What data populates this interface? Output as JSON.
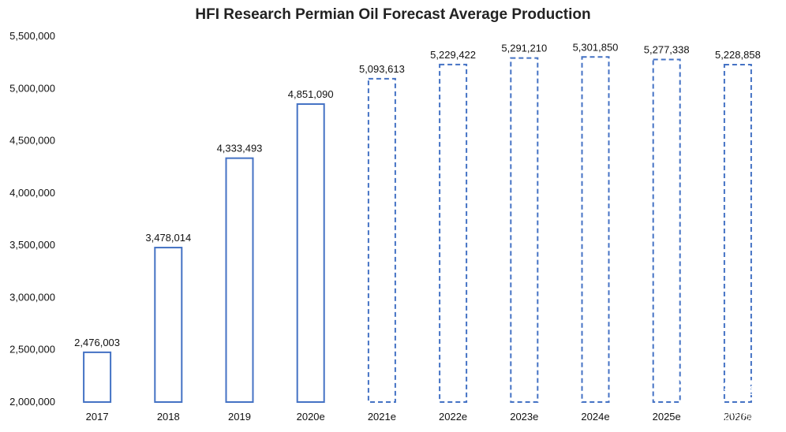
{
  "chart_data": {
    "type": "bar",
    "title": "HFI Research Permian Oil Forecast Average Production",
    "xlabel": "",
    "ylabel": "",
    "categories": [
      "2017",
      "2018",
      "2019",
      "2020e",
      "2021e",
      "2022e",
      "2023e",
      "2024e",
      "2025e",
      "2026e"
    ],
    "values": [
      2476003,
      3478014,
      4333493,
      4851090,
      5093613,
      5229422,
      5291210,
      5301850,
      5277338,
      5228858
    ],
    "value_labels": [
      "2,476,003",
      "3,478,014",
      "4,333,493",
      "4,851,090",
      "5,093,613",
      "5,229,422",
      "5,291,210",
      "5,301,850",
      "5,277,338",
      "5,228,858"
    ],
    "bar_styles": [
      "solid",
      "solid",
      "solid",
      "solid",
      "dashed",
      "dashed",
      "dashed",
      "dashed",
      "dashed",
      "dashed"
    ],
    "ylim": [
      2000000,
      5500000
    ],
    "yticks": [
      2000000,
      2500000,
      3000000,
      3500000,
      4000000,
      4500000,
      5000000,
      5500000
    ],
    "ytick_labels": [
      "2,000,000",
      "2,500,000",
      "3,000,000",
      "3,500,000",
      "4,000,000",
      "4,500,000",
      "5,000,000",
      "5,500,000"
    ],
    "grid": false,
    "legend": "none",
    "colors": {
      "bar_outline": "#4472C4",
      "bar_fill": "#ffffff",
      "text": "#111111"
    }
  },
  "watermark": {
    "brand": "老虎社区",
    "handle": "@时光伤痕"
  }
}
